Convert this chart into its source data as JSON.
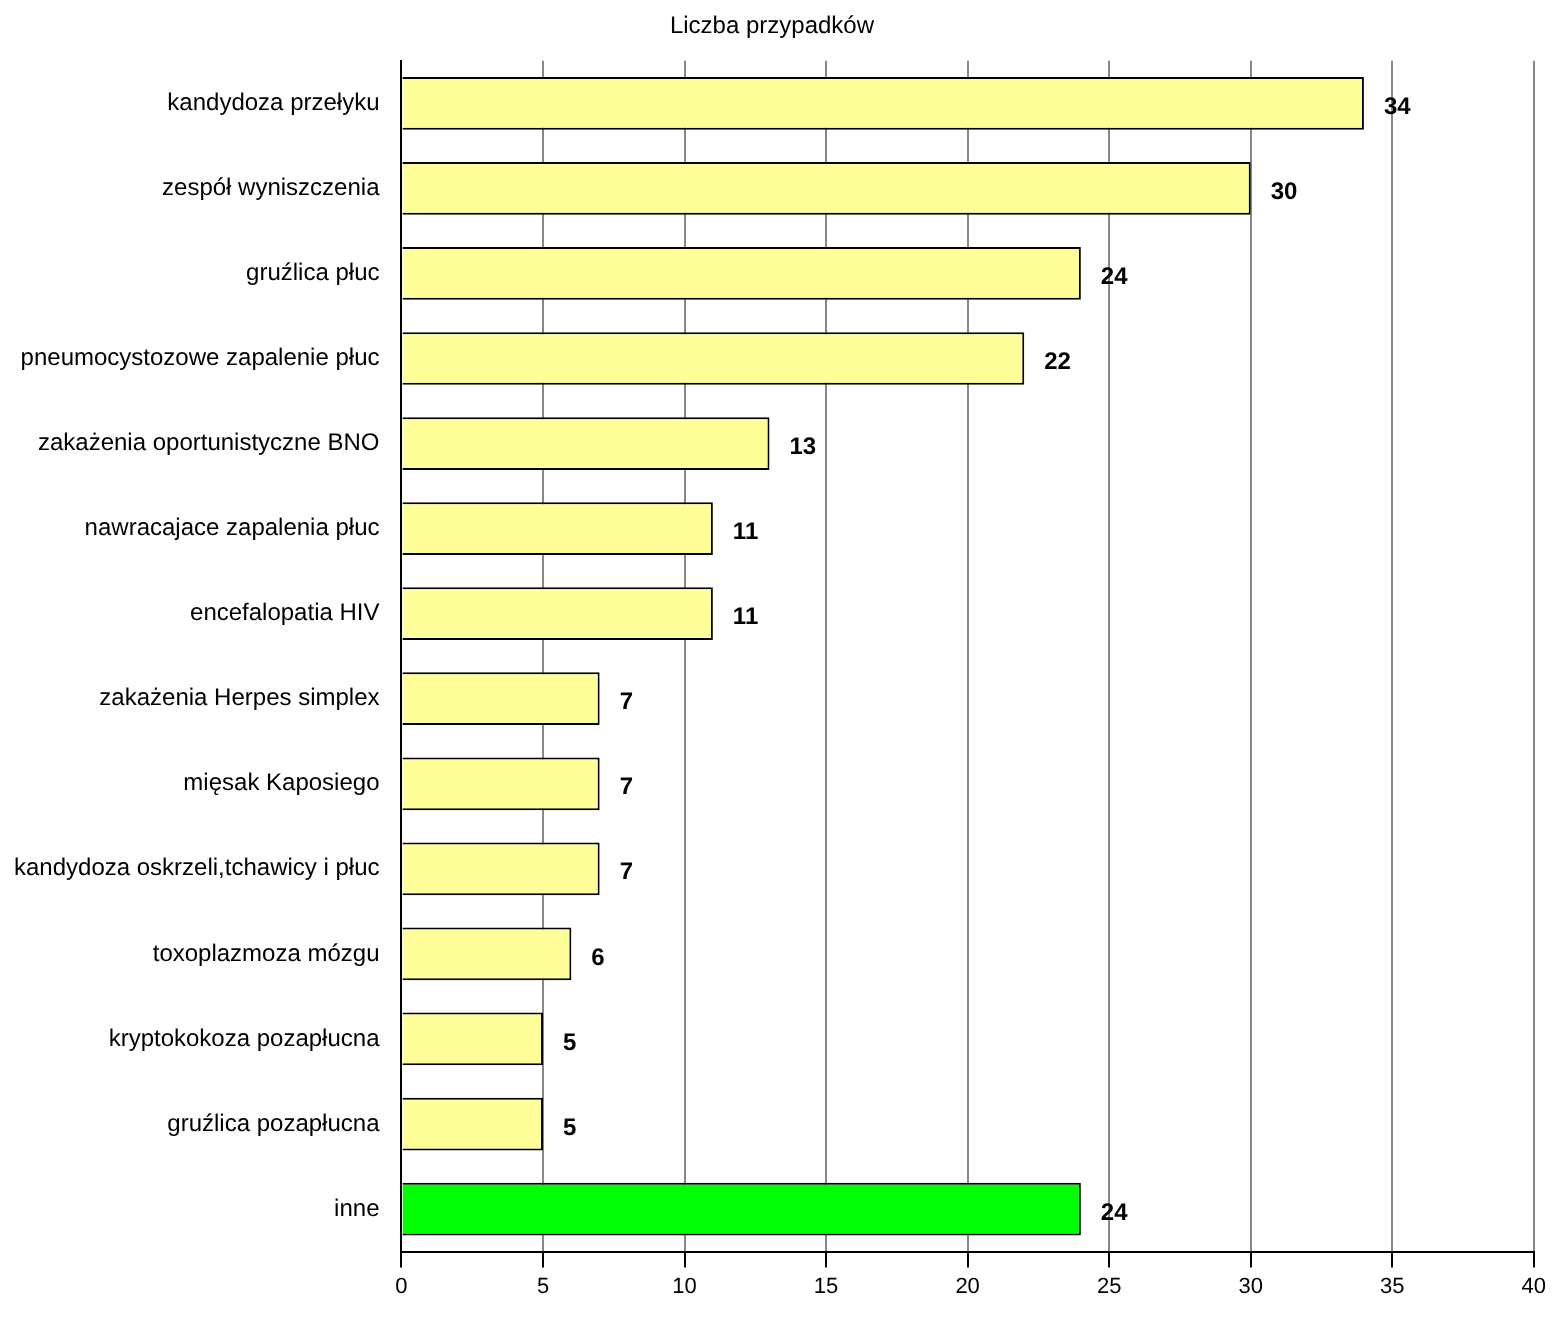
{
  "chart_data": {
    "type": "bar",
    "orientation": "horizontal",
    "title": "Liczba przypadków",
    "categories": [
      "kandydoza przełyku",
      "zespół wyniszczenia",
      "gruźlica płuc",
      "pneumocystozowe zapalenie płuc",
      "zakażenia oportunistyczne BNO",
      "nawracajace zapalenia płuc",
      "encefalopatia HIV",
      "zakażenia Herpes simplex",
      "mięsak Kaposiego",
      "kandydoza oskrzeli,tchawicy i płuc",
      "toxoplazmoza mózgu",
      "kryptokokoza pozapłucna",
      "gruźlica pozapłucna",
      "inne"
    ],
    "values": [
      34,
      30,
      24,
      22,
      13,
      11,
      11,
      7,
      7,
      7,
      6,
      5,
      5,
      24
    ],
    "colors": [
      "#ffff99",
      "#ffff99",
      "#ffff99",
      "#ffff99",
      "#ffff99",
      "#ffff99",
      "#ffff99",
      "#ffff99",
      "#ffff99",
      "#ffff99",
      "#ffff99",
      "#ffff99",
      "#ffff99",
      "#00ff00"
    ],
    "xlim": [
      0,
      40
    ],
    "xticks": [
      0,
      5,
      10,
      15,
      20,
      25,
      30,
      35,
      40
    ],
    "grid": "x",
    "legend": false,
    "data_labels": true
  }
}
